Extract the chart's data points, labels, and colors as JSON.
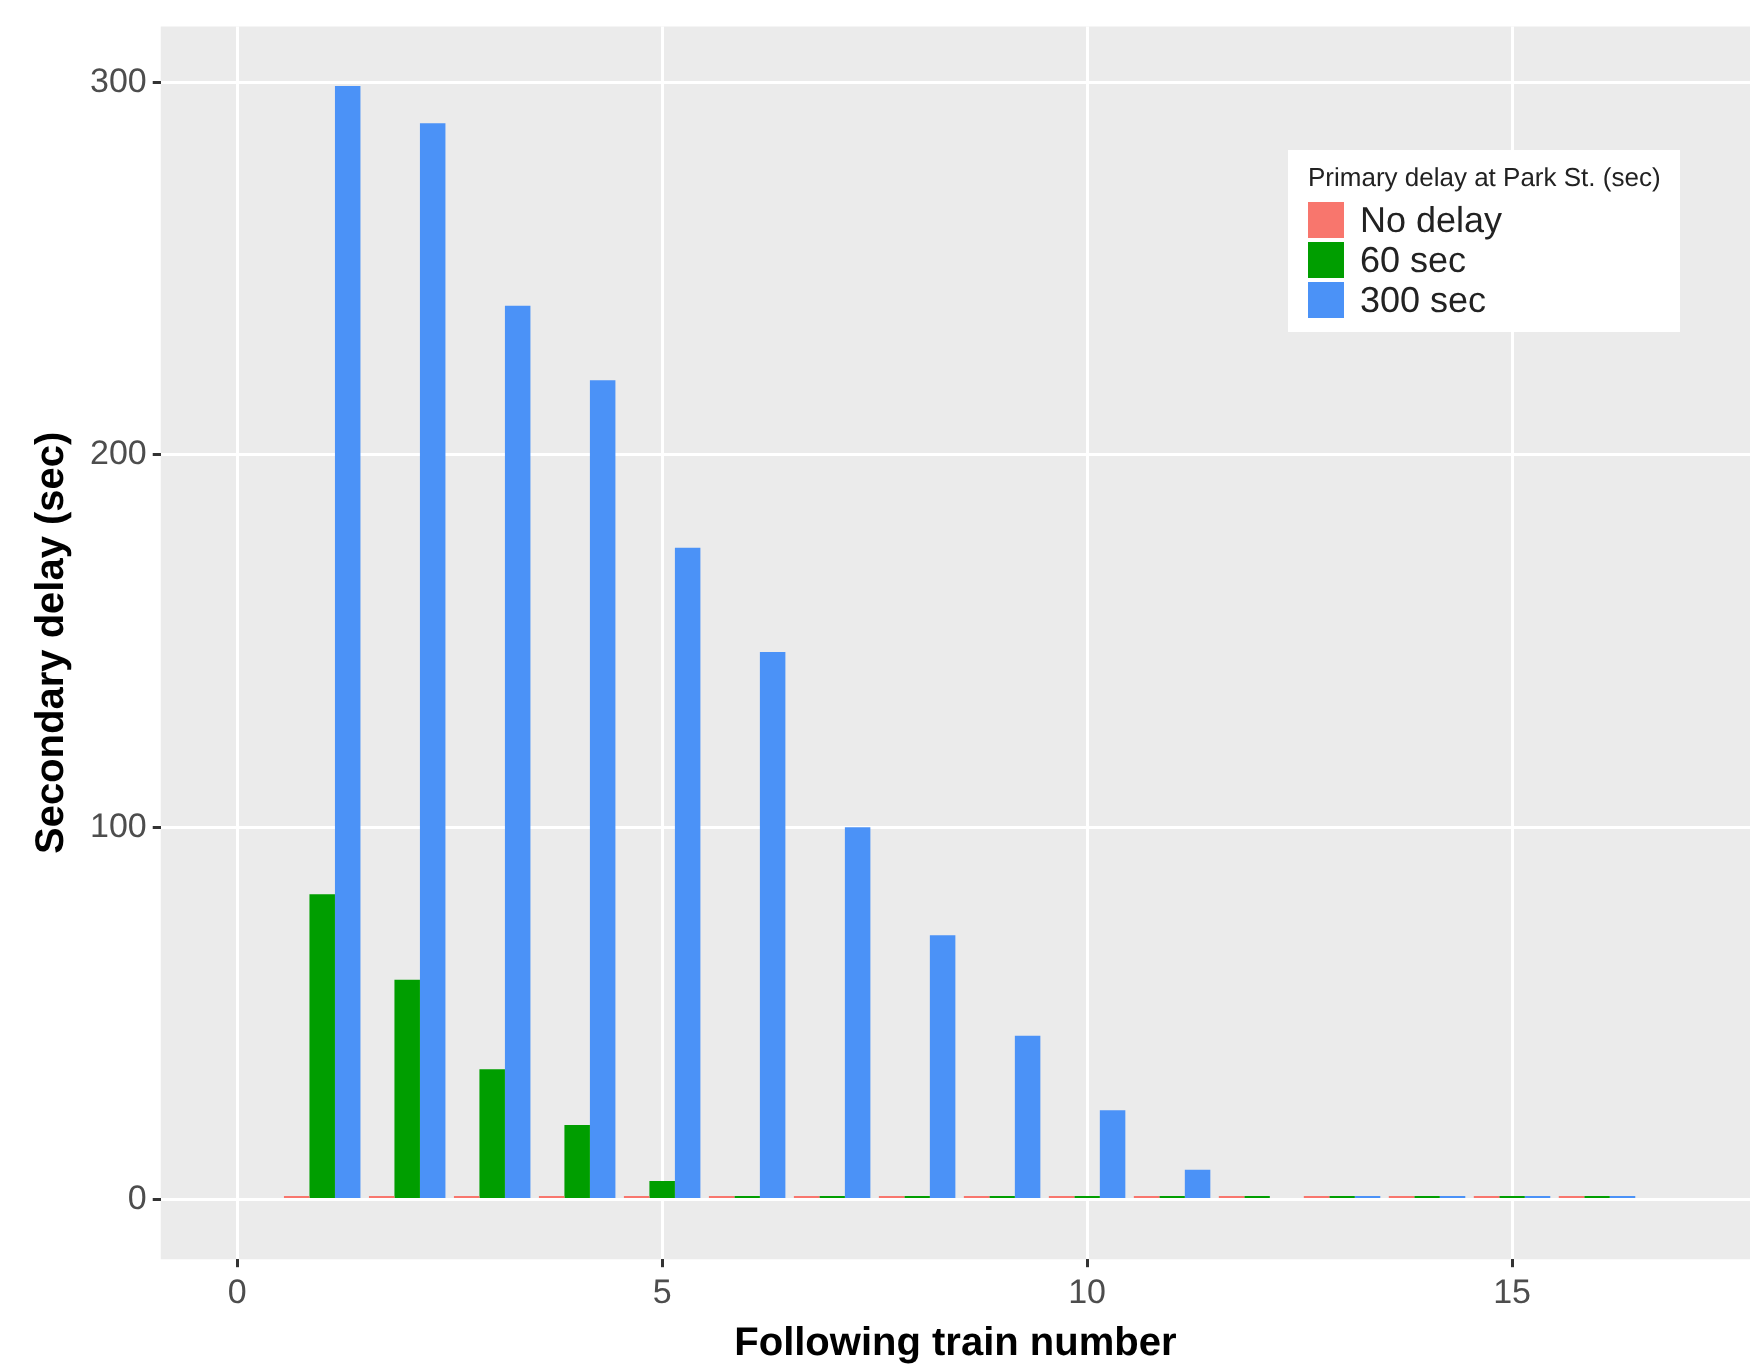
{
  "chart_data": {
    "type": "bar",
    "xlabel": "Following train number",
    "ylabel": "Secondary delay (sec)",
    "legend_title": "Primary delay at Park St. (sec)",
    "x": [
      1,
      2,
      3,
      4,
      5,
      6,
      7,
      8,
      9,
      10,
      11,
      12,
      13,
      14,
      15,
      16
    ],
    "series": [
      {
        "name": "No delay",
        "color": "#f8766d",
        "values": [
          1,
          1,
          1,
          1,
          1,
          1,
          1,
          1,
          1,
          1,
          1,
          1,
          1,
          1,
          1,
          1
        ]
      },
      {
        "name": "60 sec",
        "color": "#009e00",
        "values": [
          82,
          59,
          35,
          20,
          5,
          1,
          1,
          1,
          1,
          1,
          1,
          1,
          1,
          1,
          1,
          1
        ]
      },
      {
        "name": "300 sec",
        "color": "#4b92f7",
        "values": [
          299,
          289,
          240,
          220,
          175,
          147,
          100,
          71,
          44,
          24,
          8,
          0,
          1,
          1,
          1,
          1
        ]
      }
    ],
    "xlim": [
      -0.9,
      17.8
    ],
    "xticks": [
      0,
      5,
      10,
      15
    ],
    "ylim": [
      -16,
      315
    ],
    "yticks": [
      0,
      100,
      200,
      300
    ],
    "grid": true,
    "legend": "top right"
  }
}
